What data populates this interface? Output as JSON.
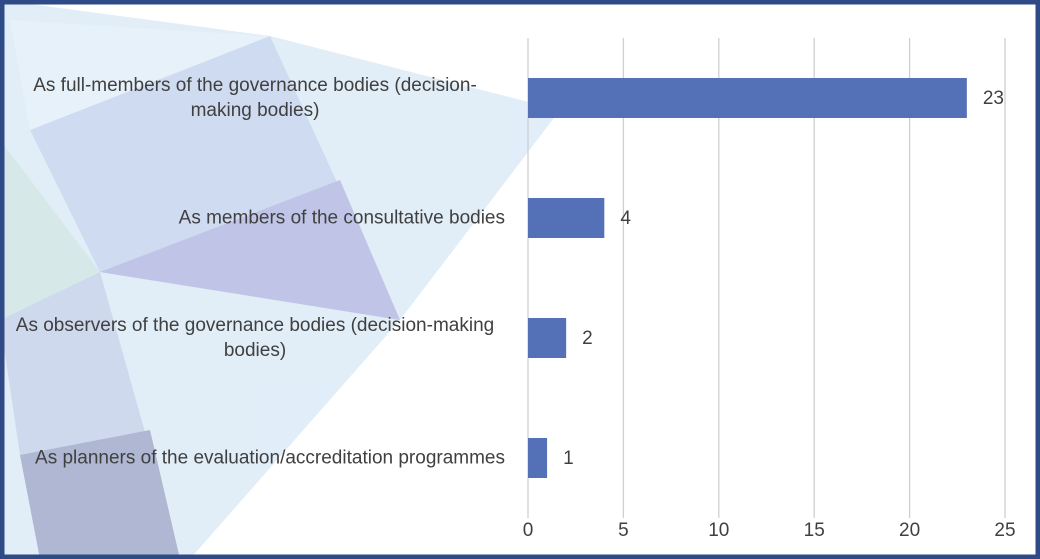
{
  "chart_data": {
    "type": "hbar",
    "categories": [
      "As full-members of the governance bodies (decision-making bodies)",
      "As members of the consultative bodies",
      "As observers of the governance bodies (decision-making bodies)",
      "As planners of the evaluation/accreditation programmes"
    ],
    "values": [
      23,
      4,
      2,
      1
    ],
    "color": "#5470b6",
    "xlim": [
      0,
      25
    ],
    "xticks": [
      0,
      5,
      10,
      15,
      20,
      25
    ],
    "grid": true
  }
}
